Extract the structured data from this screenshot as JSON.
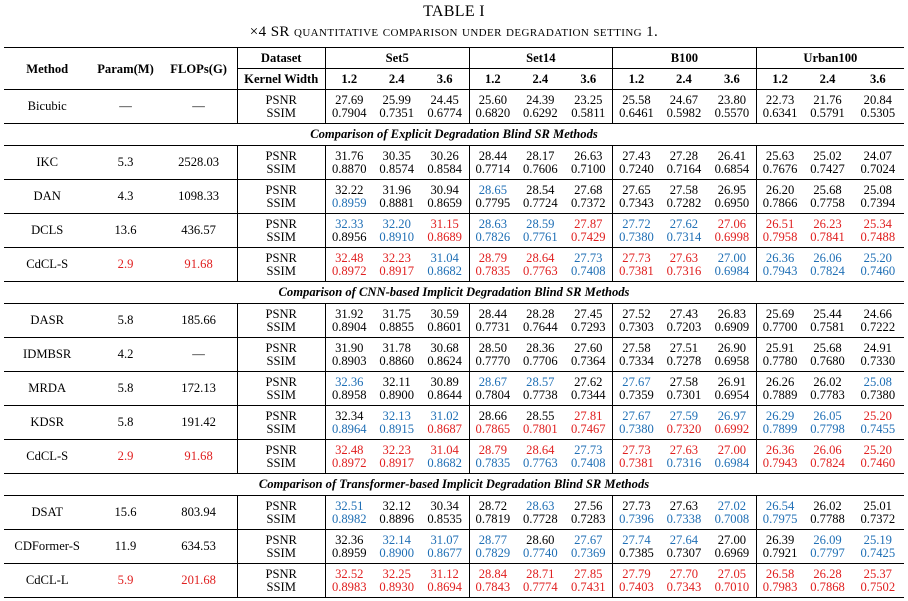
{
  "caption": {
    "title": "TABLE I",
    "subtitle": "×4 SR quantitative comparison under degradation setting 1."
  },
  "colors": {
    "best": "#e02020",
    "second": "#1f6fb5"
  },
  "header": {
    "method": "Method",
    "params": "Param(M)",
    "flops": "FLOPs(G)",
    "dataset": "Dataset",
    "kernel_width": "Kernel Width",
    "datasets": [
      "Set5",
      "Set14",
      "B100",
      "Urban100"
    ],
    "widths": [
      "1.2",
      "2.4",
      "3.6",
      "1.2",
      "2.4",
      "3.6",
      "1.2",
      "2.4",
      "3.6",
      "1.2",
      "2.4",
      "3.6"
    ]
  },
  "metrics": [
    "PSNR",
    "SSIM"
  ],
  "sections": [
    {
      "title": "",
      "rows": [
        {
          "method": "Bicubic",
          "params": "—",
          "flops": "—",
          "psnr": [
            "27.69",
            "25.99",
            "24.45",
            "25.60",
            "24.39",
            "23.25",
            "25.58",
            "24.67",
            "23.80",
            "22.73",
            "21.76",
            "20.84"
          ],
          "ssim": [
            "0.7904",
            "0.7351",
            "0.6774",
            "0.6820",
            "0.6292",
            "0.5811",
            "0.6461",
            "0.5982",
            "0.5570",
            "0.6341",
            "0.5791",
            "0.5305"
          ],
          "psnr_c": [
            "",
            "",
            "",
            "",
            "",
            "",
            "",
            "",
            "",
            "",
            "",
            ""
          ],
          "ssim_c": [
            "",
            "",
            "",
            "",
            "",
            "",
            "",
            "",
            "",
            "",
            "",
            ""
          ]
        }
      ]
    },
    {
      "title": "Comparison of Explicit Degradation Blind SR Methods",
      "rows": [
        {
          "method": "IKC",
          "params": "5.3",
          "flops": "2528.03",
          "psnr": [
            "31.76",
            "30.35",
            "30.26",
            "28.44",
            "28.17",
            "26.63",
            "27.43",
            "27.28",
            "26.41",
            "25.63",
            "25.02",
            "24.07"
          ],
          "ssim": [
            "0.8870",
            "0.8574",
            "0.8584",
            "0.7714",
            "0.7606",
            "0.7100",
            "0.7240",
            "0.7164",
            "0.6854",
            "0.7676",
            "0.7427",
            "0.7024"
          ],
          "psnr_c": [
            "",
            "",
            "",
            "",
            "",
            "",
            "",
            "",
            "",
            "",
            "",
            ""
          ],
          "ssim_c": [
            "",
            "",
            "",
            "",
            "",
            "",
            "",
            "",
            "",
            "",
            "",
            ""
          ]
        },
        {
          "method": "DAN",
          "params": "4.3",
          "flops": "1098.33",
          "psnr": [
            "32.22",
            "31.96",
            "30.94",
            "28.65",
            "28.54",
            "27.68",
            "27.65",
            "27.58",
            "26.95",
            "26.20",
            "25.68",
            "25.08"
          ],
          "ssim": [
            "0.8959",
            "0.8881",
            "0.8659",
            "0.7795",
            "0.7724",
            "0.7372",
            "0.7343",
            "0.7282",
            "0.6950",
            "0.7866",
            "0.7758",
            "0.7394"
          ],
          "psnr_c": [
            "",
            "",
            "",
            "b",
            "",
            "",
            "",
            "",
            "",
            "",
            "",
            ""
          ],
          "ssim_c": [
            "b",
            "",
            "",
            "",
            "",
            "",
            "",
            "",
            "",
            "",
            "",
            ""
          ]
        },
        {
          "method": "DCLS",
          "params": "13.6",
          "flops": "436.57",
          "psnr": [
            "32.33",
            "32.20",
            "31.15",
            "28.63",
            "28.59",
            "27.87",
            "27.72",
            "27.62",
            "27.06",
            "26.51",
            "26.23",
            "25.34"
          ],
          "ssim": [
            "0.8956",
            "0.8910",
            "0.8689",
            "0.7826",
            "0.7761",
            "0.7429",
            "0.7380",
            "0.7314",
            "0.6998",
            "0.7958",
            "0.7841",
            "0.7488"
          ],
          "psnr_c": [
            "b",
            "b",
            "r",
            "b",
            "b",
            "r",
            "b",
            "b",
            "r",
            "r",
            "r",
            "r"
          ],
          "ssim_c": [
            "",
            "b",
            "r",
            "b",
            "b",
            "r",
            "b",
            "b",
            "r",
            "r",
            "r",
            "r"
          ]
        },
        {
          "method": "CdCL-S",
          "params": "2.9",
          "flops": "91.68",
          "pf_c": "r",
          "psnr": [
            "32.48",
            "32.23",
            "31.04",
            "28.79",
            "28.64",
            "27.73",
            "27.73",
            "27.63",
            "27.00",
            "26.36",
            "26.06",
            "25.20"
          ],
          "ssim": [
            "0.8972",
            "0.8917",
            "0.8682",
            "0.7835",
            "0.7763",
            "0.7408",
            "0.7381",
            "0.7316",
            "0.6984",
            "0.7943",
            "0.7824",
            "0.7460"
          ],
          "psnr_c": [
            "r",
            "r",
            "b",
            "r",
            "r",
            "b",
            "r",
            "r",
            "b",
            "b",
            "b",
            "b"
          ],
          "ssim_c": [
            "r",
            "r",
            "b",
            "r",
            "r",
            "b",
            "r",
            "r",
            "b",
            "b",
            "b",
            "b"
          ]
        }
      ]
    },
    {
      "title": "Comparison of CNN-based Implicit Degradation Blind SR Methods",
      "rows": [
        {
          "method": "DASR",
          "params": "5.8",
          "flops": "185.66",
          "psnr": [
            "31.92",
            "31.75",
            "30.59",
            "28.44",
            "28.28",
            "27.45",
            "27.52",
            "27.43",
            "26.83",
            "25.69",
            "25.44",
            "24.66"
          ],
          "ssim": [
            "0.8904",
            "0.8855",
            "0.8601",
            "0.7731",
            "0.7644",
            "0.7293",
            "0.7303",
            "0.7203",
            "0.6909",
            "0.7700",
            "0.7581",
            "0.7222"
          ],
          "psnr_c": [
            "",
            "",
            "",
            "",
            "",
            "",
            "",
            "",
            "",
            "",
            "",
            ""
          ],
          "ssim_c": [
            "",
            "",
            "",
            "",
            "",
            "",
            "",
            "",
            "",
            "",
            "",
            ""
          ]
        },
        {
          "method": "IDMBSR",
          "params": "4.2",
          "flops": "—",
          "psnr": [
            "31.90",
            "31.78",
            "30.68",
            "28.50",
            "28.36",
            "27.60",
            "27.58",
            "27.51",
            "26.90",
            "25.91",
            "25.68",
            "24.91"
          ],
          "ssim": [
            "0.8903",
            "0.8860",
            "0.8624",
            "0.7770",
            "0.7706",
            "0.7364",
            "0.7334",
            "0.7278",
            "0.6958",
            "0.7780",
            "0.7680",
            "0.7330"
          ],
          "psnr_c": [
            "",
            "",
            "",
            "",
            "",
            "",
            "",
            "",
            "",
            "",
            "",
            ""
          ],
          "ssim_c": [
            "",
            "",
            "",
            "",
            "",
            "",
            "",
            "",
            "",
            "",
            "",
            ""
          ]
        },
        {
          "method": "MRDA",
          "params": "5.8",
          "flops": "172.13",
          "psnr": [
            "32.36",
            "32.11",
            "30.89",
            "28.67",
            "28.57",
            "27.62",
            "27.67",
            "27.58",
            "26.91",
            "26.26",
            "26.02",
            "25.08"
          ],
          "ssim": [
            "0.8958",
            "0.8900",
            "0.8644",
            "0.7804",
            "0.7738",
            "0.7344",
            "0.7359",
            "0.7301",
            "0.6954",
            "0.7889",
            "0.7783",
            "0.7380"
          ],
          "psnr_c": [
            "b",
            "",
            "",
            "b",
            "b",
            "",
            "b",
            "",
            "",
            "",
            "",
            "b"
          ],
          "ssim_c": [
            "",
            "",
            "",
            "",
            "",
            "",
            "",
            "",
            "",
            "",
            "",
            ""
          ]
        },
        {
          "method": "KDSR",
          "params": "5.8",
          "flops": "191.42",
          "psnr": [
            "32.34",
            "32.13",
            "31.02",
            "28.66",
            "28.55",
            "27.81",
            "27.67",
            "27.59",
            "26.97",
            "26.29",
            "26.05",
            "25.20"
          ],
          "ssim": [
            "0.8964",
            "0.8915",
            "0.8687",
            "0.7865",
            "0.7801",
            "0.7467",
            "0.7380",
            "0.7320",
            "0.6992",
            "0.7899",
            "0.7798",
            "0.7455"
          ],
          "psnr_c": [
            "",
            "b",
            "b",
            "",
            "",
            "r",
            "b",
            "b",
            "b",
            "b",
            "b",
            "r"
          ],
          "ssim_c": [
            "b",
            "b",
            "r",
            "r",
            "r",
            "r",
            "b",
            "r",
            "r",
            "b",
            "b",
            "b"
          ]
        },
        {
          "method": "CdCL-S",
          "params": "2.9",
          "flops": "91.68",
          "pf_c": "r",
          "psnr": [
            "32.48",
            "32.23",
            "31.04",
            "28.79",
            "28.64",
            "27.73",
            "27.73",
            "27.63",
            "27.00",
            "26.36",
            "26.06",
            "25.20"
          ],
          "ssim": [
            "0.8972",
            "0.8917",
            "0.8682",
            "0.7835",
            "0.7763",
            "0.7408",
            "0.7381",
            "0.7316",
            "0.6984",
            "0.7943",
            "0.7824",
            "0.7460"
          ],
          "psnr_c": [
            "r",
            "r",
            "r",
            "r",
            "r",
            "b",
            "r",
            "r",
            "r",
            "r",
            "r",
            "r"
          ],
          "ssim_c": [
            "r",
            "r",
            "b",
            "b",
            "b",
            "b",
            "r",
            "b",
            "b",
            "r",
            "r",
            "r"
          ]
        }
      ]
    },
    {
      "title": "Comparison of Transformer-based Implicit Degradation Blind SR Methods",
      "rows": [
        {
          "method": "DSAT",
          "params": "15.6",
          "flops": "803.94",
          "psnr": [
            "32.51",
            "32.12",
            "30.34",
            "28.72",
            "28.63",
            "27.56",
            "27.73",
            "27.63",
            "27.02",
            "26.54",
            "26.02",
            "25.01"
          ],
          "ssim": [
            "0.8982",
            "0.8896",
            "0.8535",
            "0.7819",
            "0.7728",
            "0.7283",
            "0.7396",
            "0.7338",
            "0.7008",
            "0.7975",
            "0.7788",
            "0.7372"
          ],
          "psnr_c": [
            "b",
            "",
            "",
            "",
            "b",
            "",
            "",
            "",
            "b",
            "b",
            "",
            ""
          ],
          "ssim_c": [
            "b",
            "",
            "",
            "",
            "",
            "",
            "b",
            "b",
            "b",
            "b",
            "",
            ""
          ]
        },
        {
          "method": "CDFormer-S",
          "params": "11.9",
          "flops": "634.53",
          "psnr": [
            "32.36",
            "32.14",
            "31.07",
            "28.77",
            "28.60",
            "27.67",
            "27.74",
            "27.64",
            "27.00",
            "26.39",
            "26.09",
            "25.19"
          ],
          "ssim": [
            "0.8959",
            "0.8900",
            "0.8677",
            "0.7829",
            "0.7740",
            "0.7369",
            "0.7385",
            "0.7307",
            "0.6969",
            "0.7921",
            "0.7797",
            "0.7425"
          ],
          "psnr_c": [
            "",
            "b",
            "b",
            "b",
            "",
            "b",
            "b",
            "b",
            "",
            "",
            "b",
            "b"
          ],
          "ssim_c": [
            "",
            "b",
            "b",
            "b",
            "b",
            "b",
            "",
            "",
            "",
            "",
            "b",
            "b"
          ]
        },
        {
          "method": "CdCL-L",
          "params": "5.9",
          "flops": "201.68",
          "pf_c": "r",
          "psnr": [
            "32.52",
            "32.25",
            "31.12",
            "28.84",
            "28.71",
            "27.85",
            "27.79",
            "27.70",
            "27.05",
            "26.58",
            "26.28",
            "25.37"
          ],
          "ssim": [
            "0.8983",
            "0.8930",
            "0.8694",
            "0.7843",
            "0.7774",
            "0.7431",
            "0.7403",
            "0.7343",
            "0.7010",
            "0.7983",
            "0.7868",
            "0.7502"
          ],
          "psnr_c": [
            "r",
            "r",
            "r",
            "r",
            "r",
            "r",
            "r",
            "r",
            "r",
            "r",
            "r",
            "r"
          ],
          "ssim_c": [
            "r",
            "r",
            "r",
            "r",
            "r",
            "r",
            "r",
            "r",
            "r",
            "r",
            "r",
            "r"
          ]
        }
      ]
    }
  ]
}
